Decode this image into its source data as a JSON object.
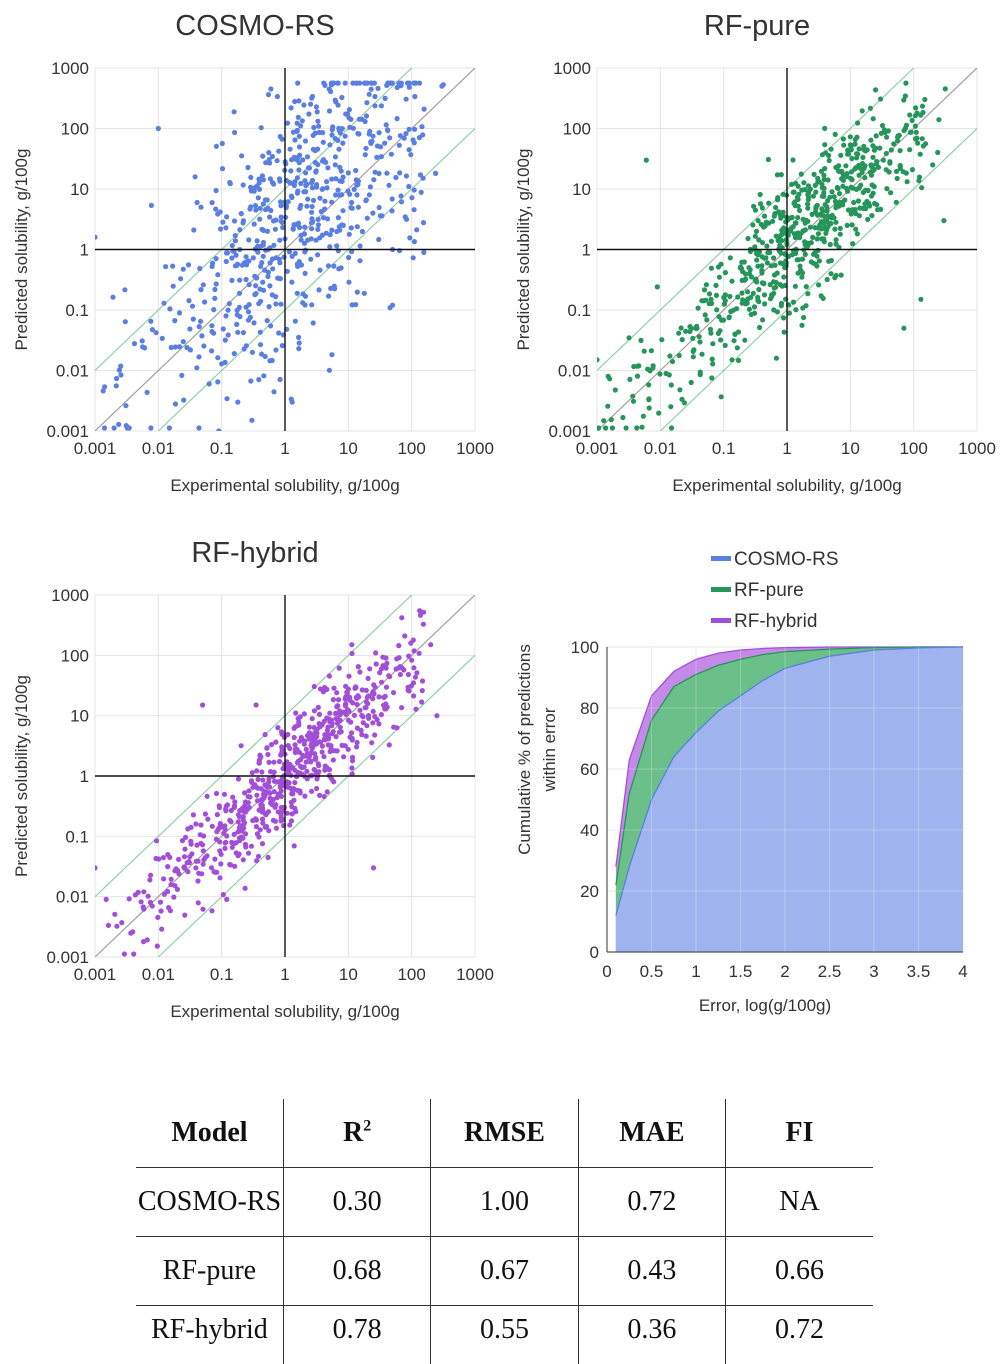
{
  "colors": {
    "cosmo": "#5a7fe0",
    "rfpure": "#26955a",
    "rfhybrid": "#a24fd8",
    "area_cosmo": "#9fb4ee",
    "area_rfpure": "#6bbf89",
    "area_rfhybrid": "#c58ae8",
    "band": "#8fd0a6",
    "diag": "#a0a0a0",
    "grid": "#e4e4e4"
  },
  "chart_data": [
    {
      "type": "scatter",
      "title": "COSMO-RS",
      "xlabel": "Experimental solubility, g/100g",
      "ylabel": "Predicted solubility, g/100g",
      "xscale": "log",
      "yscale": "log",
      "xlim": [
        0.001,
        1000
      ],
      "ylim": [
        0.001,
        1000
      ],
      "xticks": [
        "0.001",
        "0.01",
        "0.1",
        "1",
        "10",
        "100",
        "1000"
      ],
      "yticks": [
        "0.001",
        "0.01",
        "0.1",
        "1",
        "10",
        "100",
        "1000"
      ],
      "reference_lines": [
        "y = x",
        "y = 10x",
        "y = 0.1x",
        "x = 1",
        "y = 1"
      ],
      "grid": true,
      "color": "cosmo",
      "n_points": 650,
      "approx_spread_log10": 1.0,
      "approx_bias_log10": 0.45,
      "sample_points": [
        [
          0.001,
          1.6
        ],
        [
          0.01,
          100
        ],
        [
          0.6,
          450
        ],
        [
          0.09,
          0.001
        ],
        [
          0.18,
          0.003
        ],
        [
          0.3,
          0.0015
        ],
        [
          1.3,
          0.003
        ],
        [
          50,
          0.12
        ],
        [
          300,
          500
        ],
        [
          50,
          1.0
        ]
      ]
    },
    {
      "type": "scatter",
      "title": "RF-pure",
      "xlabel": "Experimental solubility, g/100g",
      "ylabel": "Predicted solubility, g/100g",
      "xscale": "log",
      "yscale": "log",
      "xlim": [
        0.001,
        1000
      ],
      "ylim": [
        0.001,
        1000
      ],
      "xticks": [
        "0.001",
        "0.01",
        "0.1",
        "1",
        "10",
        "100",
        "1000"
      ],
      "yticks": [
        "0.001",
        "0.01",
        "0.1",
        "1",
        "10",
        "100",
        "1000"
      ],
      "reference_lines": [
        "y = x",
        "y = 10x",
        "y = 0.1x",
        "x = 1",
        "y = 1"
      ],
      "grid": true,
      "color": "rfpure",
      "n_points": 650,
      "approx_spread_log10": 0.55,
      "approx_bias_log10": 0.0,
      "sample_points": [
        [
          0.001,
          0.015
        ],
        [
          0.0015,
          0.008
        ],
        [
          0.006,
          30
        ],
        [
          0.35,
          3
        ],
        [
          70,
          0.05
        ],
        [
          130,
          0.15
        ],
        [
          250,
          140
        ],
        [
          300,
          3
        ],
        [
          200,
          25
        ]
      ]
    },
    {
      "type": "scatter",
      "title": "RF-hybrid",
      "xlabel": "Experimental solubility, g/100g",
      "ylabel": "Predicted solubility, g/100g",
      "xscale": "log",
      "yscale": "log",
      "xlim": [
        0.001,
        1000
      ],
      "ylim": [
        0.001,
        1000
      ],
      "xticks": [
        "0.001",
        "0.01",
        "0.1",
        "1",
        "10",
        "100",
        "1000"
      ],
      "yticks": [
        "0.001",
        "0.01",
        "0.1",
        "1",
        "10",
        "100",
        "1000"
      ],
      "reference_lines": [
        "y = x",
        "y = 10x",
        "y = 0.1x",
        "x = 1",
        "y = 1"
      ],
      "grid": true,
      "color": "rfhybrid",
      "n_points": 650,
      "approx_spread_log10": 0.42,
      "approx_bias_log10": 0.0,
      "sample_points": [
        [
          0.001,
          0.03
        ],
        [
          0.0015,
          0.009
        ],
        [
          0.008,
          0.007
        ],
        [
          0.05,
          15
        ],
        [
          0.35,
          15
        ],
        [
          0.12,
          0.009
        ],
        [
          25,
          0.03
        ],
        [
          200,
          150
        ],
        [
          250,
          10
        ]
      ]
    },
    {
      "type": "area",
      "title": "",
      "xlabel": "Error, log(g/100g)",
      "ylabel": "Cumulative % of predictions within error",
      "xlim": [
        0,
        4
      ],
      "ylim": [
        0,
        100
      ],
      "xticks": [
        "0",
        "0.5",
        "1",
        "1.5",
        "2",
        "2.5",
        "3",
        "3.5",
        "4"
      ],
      "yticks": [
        "0",
        "20",
        "40",
        "60",
        "80",
        "100"
      ],
      "grid": true,
      "legend": "top-left above plot",
      "x": [
        0.1,
        0.25,
        0.5,
        0.75,
        1.0,
        1.25,
        1.5,
        1.75,
        2.0,
        2.5,
        3.0,
        3.5,
        4.0
      ],
      "series": [
        {
          "name": "COSMO-RS",
          "color": "area_cosmo",
          "values": [
            12,
            28,
            50,
            64,
            72,
            79,
            84,
            89,
            93,
            97,
            99,
            99.7,
            100
          ]
        },
        {
          "name": "RF-pure",
          "color": "area_rfpure",
          "values": [
            22,
            52,
            76,
            87,
            91,
            94,
            96,
            97.5,
            98.5,
            99.3,
            99.8,
            100,
            100
          ]
        },
        {
          "name": "RF-hybrid",
          "color": "area_rfhybrid",
          "values": [
            28,
            63,
            84,
            92,
            96,
            98,
            99,
            99.5,
            99.8,
            100,
            100,
            100,
            100
          ]
        }
      ]
    }
  ],
  "table": {
    "headers": [
      "Model",
      "R",
      "RMSE",
      "MAE",
      "FI"
    ],
    "r2_sup": "2",
    "rows": [
      [
        "COSMO-RS",
        "0.30",
        "1.00",
        "0.72",
        "NA"
      ],
      [
        "RF-pure",
        "0.68",
        "0.67",
        "0.43",
        "0.66"
      ],
      [
        "RF-hybrid",
        "0.78",
        "0.55",
        "0.36",
        "0.72"
      ]
    ]
  }
}
